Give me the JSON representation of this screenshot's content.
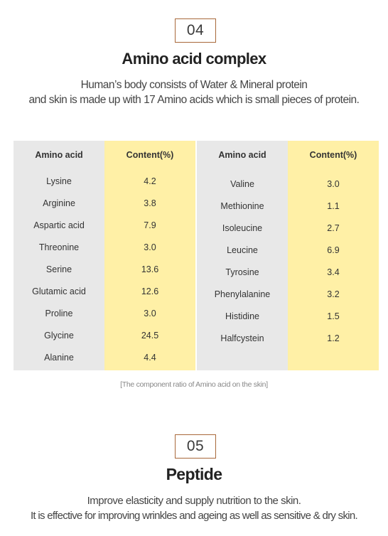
{
  "section4": {
    "number": "04",
    "title": "Amino acid complex",
    "desc_line1": "Human’s body consists of Water & Mineral protein",
    "desc_line2": "and skin is made up with 17 Amino acids which is small pieces of protein."
  },
  "table": {
    "left": {
      "header_name": "Amino acid",
      "header_value": "Content(%)",
      "rows": [
        {
          "name": "Lysine",
          "value": "4.2"
        },
        {
          "name": "Arginine",
          "value": "3.8"
        },
        {
          "name": "Aspartic acid",
          "value": "7.9"
        },
        {
          "name": "Threonine",
          "value": "3.0"
        },
        {
          "name": "Serine",
          "value": "13.6"
        },
        {
          "name": "Glutamic acid",
          "value": "12.6"
        },
        {
          "name": "Proline",
          "value": "3.0"
        },
        {
          "name": "Glycine",
          "value": "24.5"
        },
        {
          "name": "Alanine",
          "value": "4.4"
        }
      ]
    },
    "right": {
      "header_name": "Amino acid",
      "header_value": "Content(%)",
      "rows": [
        {
          "name": "Valine",
          "value": "3.0"
        },
        {
          "name": "Methionine",
          "value": "1.1"
        },
        {
          "name": "Isoleucine",
          "value": "2.7"
        },
        {
          "name": "Leucine",
          "value": "6.9"
        },
        {
          "name": "Tyrosine",
          "value": "3.4"
        },
        {
          "name": "Phenylalanine",
          "value": "3.2"
        },
        {
          "name": "Histidine",
          "value": "1.5"
        },
        {
          "name": "Halfcystein",
          "value": "1.2"
        }
      ]
    },
    "caption": "[The component ratio of Amino acid on the skin]"
  },
  "section5": {
    "number": "05",
    "title": "Peptide",
    "desc_line1": "Improve elasticity and supply nutrition to the skin.",
    "desc_line2": "It is effective for improving wrinkles and ageing as well as sensitive & dry skin."
  },
  "colors": {
    "accent_border": "#a8683a",
    "name_column": "#e8e8e8",
    "value_column": "#fff0a6"
  }
}
